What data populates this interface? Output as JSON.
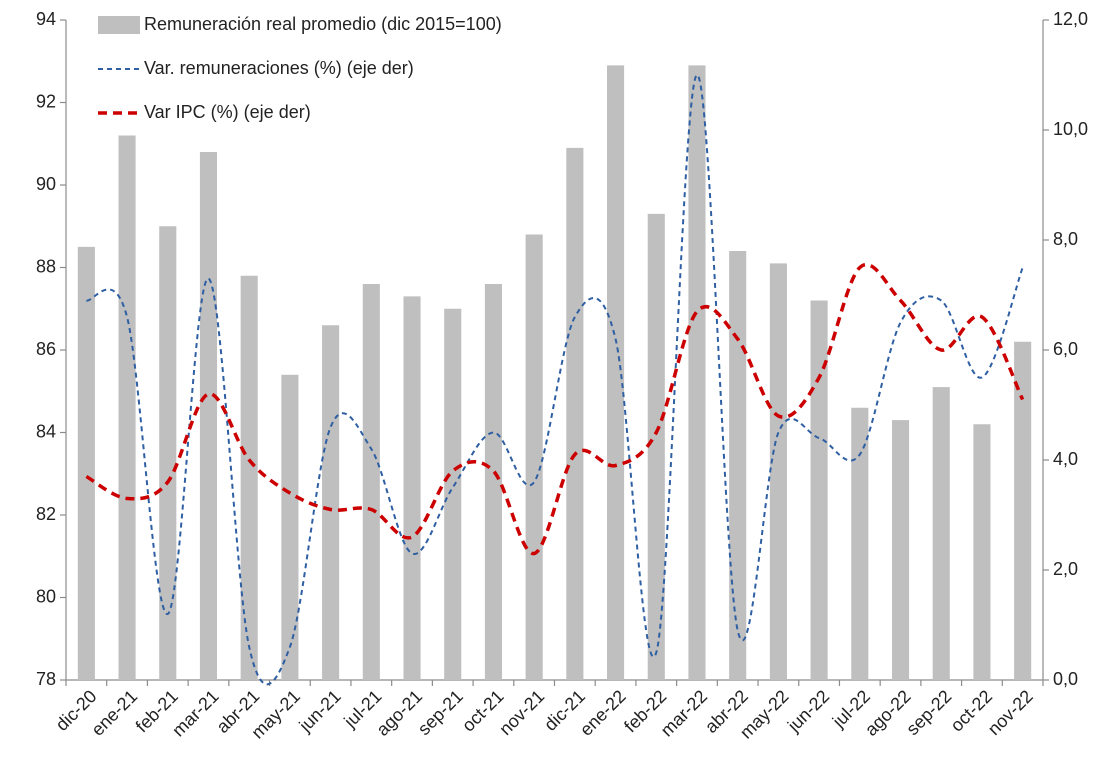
{
  "chart_data": {
    "type": "bar",
    "categories": [
      "dic-20",
      "ene-21",
      "feb-21",
      "mar-21",
      "abr-21",
      "may-21",
      "jun-21",
      "jul-21",
      "ago-21",
      "sep-21",
      "oct-21",
      "nov-21",
      "dic-21",
      "ene-22",
      "feb-22",
      "mar-22",
      "abr-22",
      "may-22",
      "jun-22",
      "jul-22",
      "ago-22",
      "sep-22",
      "oct-22",
      "nov-22"
    ],
    "series": [
      {
        "name": "Remuneración real promedio (dic 2015=100)",
        "type": "bar",
        "color": "#bfbfbf",
        "axis": "y",
        "values": [
          88.5,
          91.2,
          89.0,
          90.8,
          87.8,
          85.4,
          86.6,
          87.6,
          87.3,
          87.0,
          87.6,
          88.8,
          90.9,
          92.9,
          89.3,
          92.9,
          88.4,
          88.1,
          87.2,
          84.6,
          84.3,
          85.1,
          84.2,
          86.2
        ]
      },
      {
        "name": "Var. remuneraciones (%) (eje der)",
        "type": "line",
        "color": "#2e5fa3",
        "axis": "y2",
        "dash": "5,4",
        "width": 2,
        "values": [
          6.9,
          6.6,
          1.2,
          7.3,
          0.6,
          0.6,
          4.6,
          4.2,
          2.3,
          3.5,
          4.5,
          3.6,
          6.6,
          6.2,
          0.5,
          11.0,
          0.9,
          4.5,
          4.4,
          4.1,
          6.5,
          6.9,
          5.5,
          7.5
        ]
      },
      {
        "name": "Var IPC (%) (eje der)",
        "type": "line",
        "color": "#cc0000",
        "axis": "y2",
        "dash": "9,6",
        "width": 3.5,
        "values": [
          3.7,
          3.3,
          3.6,
          5.2,
          4.0,
          3.4,
          3.1,
          3.1,
          2.6,
          3.8,
          3.8,
          2.3,
          4.1,
          3.9,
          4.5,
          6.7,
          6.2,
          4.8,
          5.5,
          7.5,
          6.9,
          6.0,
          6.6,
          5.1
        ]
      }
    ],
    "ylim": [
      78,
      94
    ],
    "yticks": [
      78,
      80,
      82,
      84,
      86,
      88,
      90,
      92,
      94
    ],
    "y2lim": [
      0,
      12
    ],
    "y2ticks": [
      {
        "value": 0,
        "label": "0,0"
      },
      {
        "value": 2,
        "label": "2,0"
      },
      {
        "value": 4,
        "label": "4,0"
      },
      {
        "value": 6,
        "label": "6,0"
      },
      {
        "value": 8,
        "label": "8,0"
      },
      {
        "value": 10,
        "label": "10,0"
      },
      {
        "value": 12,
        "label": "12,0"
      }
    ],
    "legend": "top-left"
  }
}
